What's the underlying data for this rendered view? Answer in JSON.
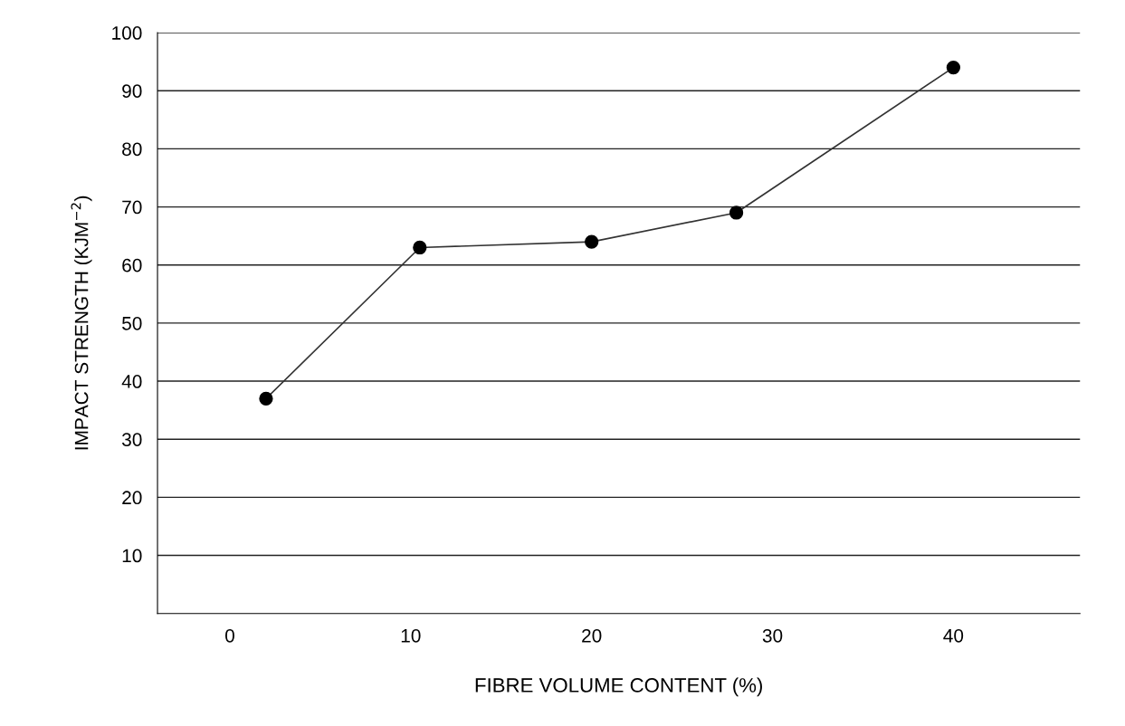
{
  "chart_data": {
    "type": "line",
    "xlabel": "FIBRE VOLUME CONTENT (%)",
    "ylabel": "IMPACT STRENGTH (KJM$^{−2}$)",
    "x": [
      2,
      10.5,
      20,
      28,
      40
    ],
    "series": [
      {
        "color": "#333333",
        "values": [
          37,
          63,
          64,
          69,
          94
        ]
      }
    ],
    "xlim": [
      -4,
      47
    ],
    "xticks": [
      0,
      10,
      20,
      30,
      40
    ],
    "ylim": [
      0,
      100
    ],
    "yticks": [
      10,
      20,
      30,
      40,
      50,
      60,
      70,
      80,
      90,
      100
    ],
    "grid": "y",
    "marker": "circle",
    "line_style": "solid"
  }
}
